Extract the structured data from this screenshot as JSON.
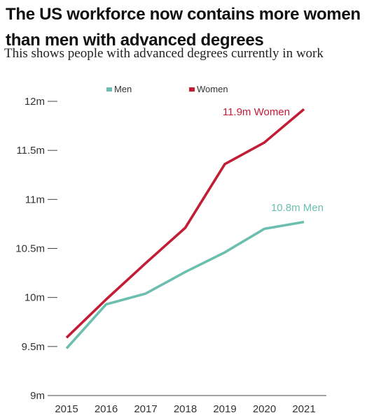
{
  "title": "The US workforce now contains more women than men with advanced degrees",
  "subtitle": "This shows people with advanced degrees currently in work",
  "colors": {
    "men": "#6cbfaf",
    "women": "#c31c35",
    "axis": "#444444"
  },
  "chart_data": {
    "type": "line",
    "x": [
      2015,
      2016,
      2017,
      2018,
      2019,
      2020,
      2021
    ],
    "ylim": [
      9,
      12
    ],
    "yticks": [
      9,
      9.5,
      10,
      10.5,
      11,
      11.5,
      12
    ],
    "ytick_labels": [
      "9m",
      "9.5m",
      "10m",
      "10.5m",
      "11m",
      "11.5m",
      "12m"
    ],
    "xtick_labels": [
      "2015",
      "2016",
      "2017",
      "2018",
      "2019",
      "2020",
      "2021"
    ],
    "legend": {
      "position": "top-left",
      "entries": [
        "Men",
        "Women"
      ]
    },
    "grid": false,
    "series": [
      {
        "name": "Men",
        "color": "#6cbfaf",
        "values": [
          9.48,
          9.93,
          10.04,
          10.26,
          10.46,
          10.7,
          10.77
        ]
      },
      {
        "name": "Women",
        "color": "#c31c35",
        "values": [
          9.59,
          9.98,
          10.35,
          10.71,
          11.36,
          11.58,
          11.92
        ]
      }
    ],
    "annotations": [
      {
        "text": "11.9m Women",
        "series": "Women"
      },
      {
        "text": "10.8m Men",
        "series": "Men"
      }
    ]
  }
}
